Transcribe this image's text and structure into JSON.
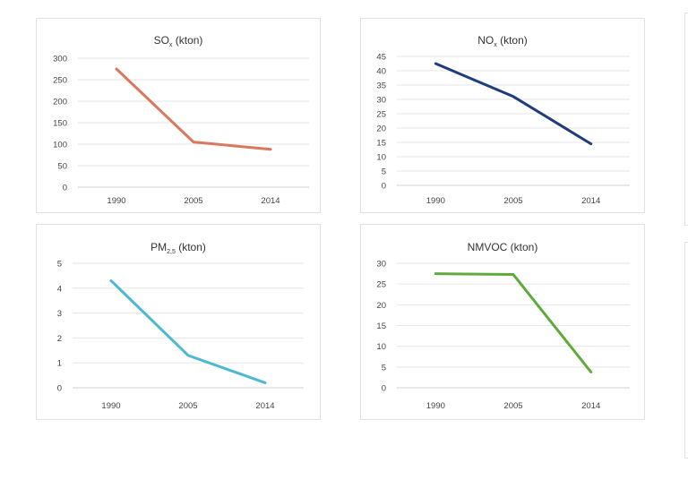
{
  "chart_data": [
    {
      "type": "line",
      "title_main": "SO",
      "title_sub": "x",
      "title_rest": " (kton)",
      "categories": [
        "1990",
        "2005",
        "2014"
      ],
      "series": [
        {
          "values": [
            275,
            105,
            88
          ]
        }
      ],
      "color": "#d9785c",
      "ylim": [
        0,
        300
      ],
      "yticks": [
        0,
        50,
        100,
        150,
        200,
        250,
        300
      ],
      "grid": true
    },
    {
      "type": "line",
      "title_main": "NO",
      "title_sub": "x",
      "title_rest": " (kton)",
      "categories": [
        "1990",
        "2005",
        "2014"
      ],
      "series": [
        {
          "values": [
            42.5,
            31,
            14.5
          ]
        }
      ],
      "color": "#1f3d7a",
      "ylim": [
        0,
        45
      ],
      "yticks": [
        0,
        5,
        10,
        15,
        20,
        25,
        30,
        35,
        40,
        45
      ],
      "grid": true
    },
    {
      "type": "line",
      "title_main": "PM",
      "title_sub": "2,5",
      "title_rest": " (kton)",
      "categories": [
        "1990",
        "2005",
        "2014"
      ],
      "series": [
        {
          "values": [
            4.3,
            1.3,
            0.2
          ]
        }
      ],
      "color": "#4db8d0",
      "ylim": [
        0,
        5
      ],
      "yticks": [
        0,
        1,
        2,
        3,
        4,
        5
      ],
      "grid": true
    },
    {
      "type": "line",
      "title_main": "NMVOC",
      "title_sub": "",
      "title_rest": " (kton)",
      "categories": [
        "1990",
        "2005",
        "2014"
      ],
      "series": [
        {
          "values": [
            27.5,
            27.3,
            3.8
          ]
        }
      ],
      "color": "#5faa3a",
      "ylim": [
        0,
        30
      ],
      "yticks": [
        0,
        5,
        10,
        15,
        20,
        25,
        30
      ],
      "grid": true
    }
  ]
}
